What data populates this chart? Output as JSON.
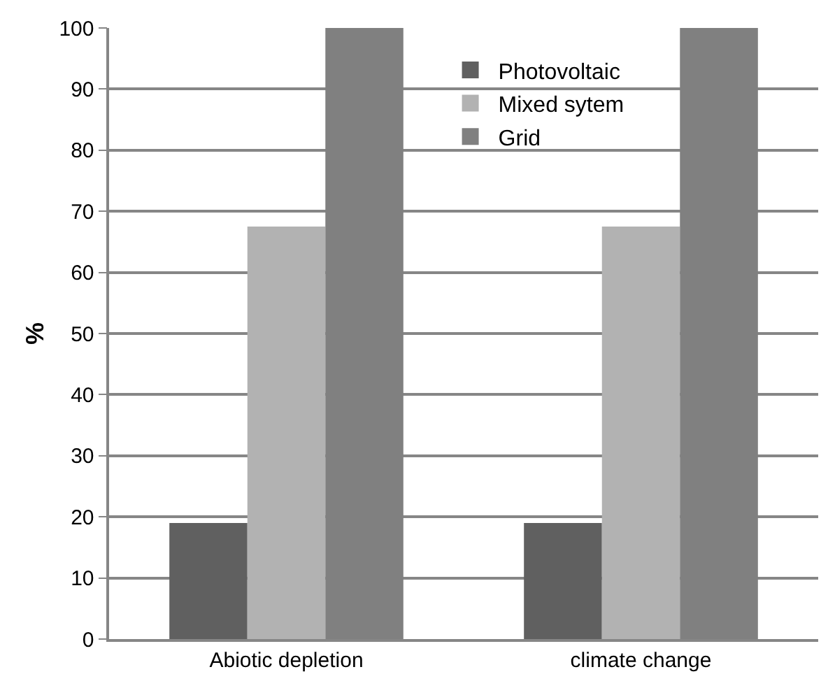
{
  "chart_data": {
    "type": "bar",
    "ylabel": "%",
    "categories": [
      "Abiotic depletion",
      "climate change"
    ],
    "series": [
      {
        "name": "Photovoltaic",
        "color": "#606060",
        "values": [
          19,
          19
        ]
      },
      {
        "name": "Mixed sytem",
        "color": "#b2b2b2",
        "values": [
          67.5,
          67.5
        ]
      },
      {
        "name": "Grid",
        "color": "#808080",
        "values": [
          100,
          100
        ]
      }
    ],
    "ylim": [
      0,
      100
    ],
    "yticks": [
      0,
      10,
      20,
      30,
      40,
      50,
      60,
      70,
      80,
      90,
      100
    ],
    "grid": "y",
    "legend": "top"
  }
}
